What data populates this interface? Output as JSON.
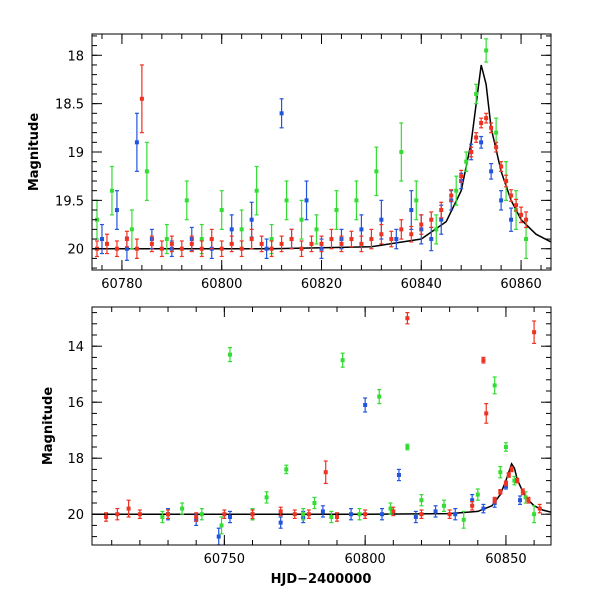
{
  "chart_data": [
    {
      "type": "scatter",
      "panel": "top",
      "xlabel": "",
      "ylabel": "Magnitude",
      "xlim": [
        60774,
        60866
      ],
      "ylim": [
        20.22,
        17.78
      ],
      "y_inverted": true,
      "x_ticks": [
        60780,
        60800,
        60820,
        60840,
        60860
      ],
      "x_tick_labels": [
        "60780",
        "60800",
        "60820",
        "60840",
        "60860"
      ],
      "y_ticks": [
        18,
        18.5,
        19,
        19.5,
        20
      ],
      "y_tick_labels": [
        "18",
        "18.5",
        "19",
        "19.5",
        "20"
      ],
      "grid": false,
      "series": [
        {
          "color": "#2255dd",
          "x": [
            60776,
            60779,
            60781,
            60783,
            60786,
            60790,
            60794,
            60798,
            60802,
            60806,
            60809,
            60812,
            60814,
            60817,
            60820,
            60824,
            60828,
            60832,
            60835,
            60838,
            60840,
            60842,
            60844,
            60846,
            60848,
            60850,
            60852,
            60854,
            60856,
            60858
          ],
          "y": [
            19.9,
            19.6,
            20.0,
            18.9,
            19.9,
            20.0,
            19.9,
            20.0,
            19.8,
            19.7,
            20.0,
            18.6,
            19.9,
            19.5,
            20.0,
            19.9,
            19.8,
            19.7,
            19.9,
            19.6,
            19.8,
            19.9,
            19.7,
            19.5,
            19.3,
            19.0,
            18.9,
            19.2,
            19.5,
            19.7
          ],
          "err": [
            0.15,
            0.2,
            0.12,
            0.3,
            0.1,
            0.08,
            0.12,
            0.1,
            0.15,
            0.18,
            0.1,
            0.15,
            0.1,
            0.2,
            0.1,
            0.1,
            0.15,
            0.2,
            0.1,
            0.2,
            0.15,
            0.12,
            0.15,
            0.1,
            0.08,
            0.08,
            0.06,
            0.08,
            0.1,
            0.12
          ]
        },
        {
          "color": "#33dd33",
          "x": [
            60775,
            60778,
            60782,
            60785,
            60789,
            60793,
            60796,
            60800,
            60804,
            60807,
            60810,
            60813,
            60816,
            60819,
            60823,
            60827,
            60831,
            60836,
            60839,
            60843,
            60847,
            60849,
            60851,
            60853,
            60855,
            60857,
            60859,
            60861
          ],
          "y": [
            19.7,
            19.4,
            19.8,
            19.2,
            19.9,
            19.5,
            19.9,
            19.6,
            19.8,
            19.4,
            19.9,
            19.5,
            19.7,
            19.8,
            19.6,
            19.5,
            19.2,
            19.0,
            19.5,
            19.8,
            19.4,
            19.1,
            18.4,
            17.95,
            18.8,
            19.3,
            19.6,
            19.9
          ],
          "err": [
            0.2,
            0.25,
            0.2,
            0.3,
            0.15,
            0.2,
            0.15,
            0.2,
            0.2,
            0.25,
            0.15,
            0.2,
            0.2,
            0.15,
            0.2,
            0.2,
            0.25,
            0.3,
            0.2,
            0.15,
            0.15,
            0.1,
            0.1,
            0.12,
            0.15,
            0.2,
            0.2,
            0.2
          ]
        },
        {
          "color": "#ee3322",
          "x": [
            60775,
            60777,
            60779,
            60781,
            60783,
            60784,
            60786,
            60788,
            60790,
            60792,
            60794,
            60796,
            60798,
            60800,
            60802,
            60804,
            60806,
            60808,
            60810,
            60812,
            60814,
            60816,
            60818,
            60820,
            60822,
            60824,
            60826,
            60828,
            60830,
            60832,
            60834,
            60836,
            60838,
            60840,
            60842,
            60844,
            60846,
            60848,
            60850,
            60851,
            60852,
            60853,
            60854,
            60855,
            60856,
            60857,
            60858,
            60859,
            60860,
            60861
          ],
          "y": [
            20.0,
            19.95,
            20.0,
            19.9,
            20.0,
            18.45,
            19.95,
            20.0,
            19.95,
            20.0,
            19.95,
            20.0,
            19.9,
            20.0,
            19.95,
            20.0,
            19.9,
            19.95,
            20.0,
            19.95,
            19.9,
            20.0,
            19.95,
            19.95,
            19.9,
            19.95,
            19.9,
            19.95,
            19.9,
            19.85,
            19.9,
            19.8,
            19.85,
            19.75,
            19.7,
            19.6,
            19.45,
            19.25,
            19.0,
            18.85,
            18.7,
            18.65,
            18.75,
            18.95,
            19.15,
            19.3,
            19.45,
            19.55,
            19.65,
            19.7
          ],
          "err": [
            0.08,
            0.1,
            0.08,
            0.08,
            0.1,
            0.35,
            0.08,
            0.08,
            0.08,
            0.08,
            0.08,
            0.08,
            0.1,
            0.08,
            0.08,
            0.08,
            0.1,
            0.08,
            0.08,
            0.08,
            0.1,
            0.08,
            0.08,
            0.08,
            0.1,
            0.08,
            0.08,
            0.08,
            0.1,
            0.1,
            0.08,
            0.1,
            0.08,
            0.1,
            0.08,
            0.08,
            0.06,
            0.06,
            0.05,
            0.05,
            0.05,
            0.05,
            0.05,
            0.05,
            0.05,
            0.06,
            0.06,
            0.06,
            0.08,
            0.08
          ]
        }
      ],
      "model_curve": {
        "color": "#000000",
        "x": [
          60774,
          60790,
          60810,
          60830,
          60840,
          60845,
          60848,
          60850,
          60851,
          60852,
          60853,
          60854,
          60856,
          60858,
          60860,
          60863,
          60866
        ],
        "y": [
          20.0,
          20.0,
          20.0,
          19.98,
          19.9,
          19.72,
          19.4,
          18.9,
          18.5,
          18.1,
          18.3,
          18.75,
          19.2,
          19.5,
          19.7,
          19.85,
          19.93
        ]
      }
    },
    {
      "type": "scatter",
      "panel": "bottom",
      "xlabel": "HJD−2400000",
      "ylabel": "Magnitude",
      "xlim": [
        60703,
        60866
      ],
      "ylim": [
        21.1,
        12.6
      ],
      "y_inverted": true,
      "x_ticks": [
        60750,
        60800,
        60850
      ],
      "x_tick_labels": [
        "60750",
        "60800",
        "60850"
      ],
      "y_ticks": [
        14,
        16,
        18,
        20
      ],
      "y_tick_labels": [
        "14",
        "16",
        "18",
        "20"
      ],
      "grid": false,
      "series": [
        {
          "color": "#2255dd",
          "x": [
            60730,
            60740,
            60748,
            60752,
            60760,
            60770,
            60778,
            60785,
            60795,
            60800,
            60806,
            60812,
            60818,
            60825,
            60832,
            60838,
            60842,
            60846,
            60850,
            60855
          ],
          "y": [
            20.0,
            20.2,
            20.8,
            20.1,
            20.0,
            20.3,
            20.1,
            19.9,
            20.0,
            16.1,
            20.0,
            18.6,
            20.1,
            19.9,
            20.0,
            19.5,
            19.8,
            19.6,
            19.0,
            19.5
          ],
          "err": [
            0.2,
            0.2,
            0.3,
            0.2,
            0.2,
            0.2,
            0.2,
            0.2,
            0.2,
            0.25,
            0.2,
            0.2,
            0.2,
            0.2,
            0.2,
            0.2,
            0.15,
            0.15,
            0.1,
            0.15
          ]
        },
        {
          "color": "#33dd33",
          "x": [
            60728,
            60735,
            60742,
            60749,
            60752,
            60760,
            60765,
            60772,
            60778,
            60782,
            60788,
            60792,
            60798,
            60805,
            60809,
            60815,
            60820,
            60828,
            60835,
            60840,
            60846,
            60848,
            60850,
            60853,
            60857,
            60860
          ],
          "y": [
            20.1,
            19.8,
            20.0,
            20.4,
            14.3,
            20.0,
            19.4,
            18.4,
            20.0,
            19.6,
            20.1,
            14.5,
            20.0,
            15.8,
            19.8,
            17.6,
            19.5,
            19.7,
            20.2,
            19.3,
            15.4,
            18.5,
            17.6,
            18.8,
            19.4,
            20.0
          ],
          "err": [
            0.2,
            0.2,
            0.2,
            0.3,
            0.25,
            0.2,
            0.2,
            0.15,
            0.2,
            0.2,
            0.2,
            0.25,
            0.2,
            0.25,
            0.2,
            0.1,
            0.2,
            0.2,
            0.3,
            0.2,
            0.3,
            0.2,
            0.15,
            0.15,
            0.2,
            0.3
          ]
        },
        {
          "color": "#ee3322",
          "x": [
            60708,
            60712,
            60716,
            60720,
            60730,
            60740,
            60750,
            60760,
            60770,
            60775,
            60780,
            60786,
            60790,
            60800,
            60810,
            60815,
            60820,
            60830,
            60838,
            60842,
            60843,
            60846,
            60848,
            60850,
            60851,
            60852,
            60854,
            60856,
            60858,
            60860,
            60862
          ],
          "y": [
            20.1,
            20.0,
            19.8,
            20.0,
            20.0,
            20.1,
            20.0,
            20.0,
            19.9,
            20.0,
            20.0,
            18.5,
            20.1,
            20.0,
            19.9,
            13.0,
            20.0,
            20.0,
            19.7,
            14.5,
            16.4,
            19.5,
            19.2,
            18.9,
            18.6,
            18.4,
            18.8,
            19.2,
            19.5,
            13.5,
            19.8
          ],
          "err": [
            0.15,
            0.2,
            0.3,
            0.15,
            0.15,
            0.15,
            0.15,
            0.15,
            0.15,
            0.15,
            0.15,
            0.4,
            0.15,
            0.15,
            0.15,
            0.2,
            0.15,
            0.15,
            0.15,
            0.1,
            0.35,
            0.1,
            0.08,
            0.08,
            0.08,
            0.08,
            0.08,
            0.1,
            0.1,
            0.4,
            0.15
          ]
        }
      ],
      "model_curve": {
        "color": "#000000",
        "x": [
          60703,
          60750,
          60800,
          60830,
          60840,
          60845,
          60848,
          60850,
          60852,
          60853,
          60854,
          60856,
          60858,
          60860,
          60863,
          60866
        ],
        "y": [
          20.0,
          20.0,
          20.0,
          19.98,
          19.9,
          19.7,
          19.3,
          18.8,
          18.2,
          18.35,
          18.75,
          19.2,
          19.5,
          19.7,
          19.85,
          19.93
        ]
      }
    }
  ]
}
